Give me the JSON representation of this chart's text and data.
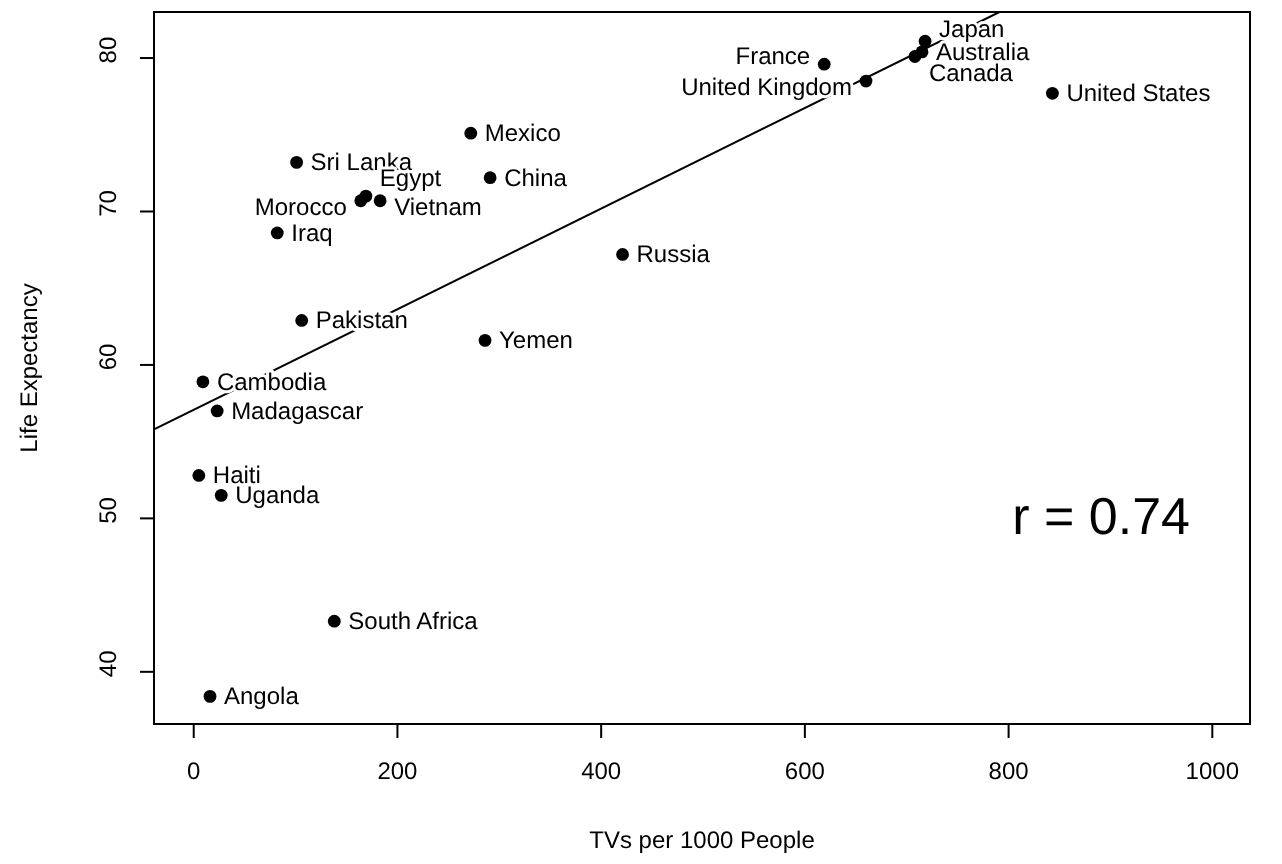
{
  "chart_data": {
    "type": "scatter",
    "xlabel": "TVs per 1000 People",
    "ylabel": "Life Expectancy",
    "xlim": [
      -39,
      1037
    ],
    "ylim": [
      36.6,
      83
    ],
    "xticks": [
      0,
      200,
      400,
      600,
      800,
      1000
    ],
    "yticks": [
      40,
      50,
      60,
      70,
      80
    ],
    "grid": false,
    "legend": false,
    "marker": "circle",
    "annotations": [
      "r =  0.74"
    ],
    "series": [
      {
        "name": "Japan",
        "color": "#000000",
        "x": [
          718
        ],
        "values": [
          81.1
        ]
      },
      {
        "name": "Australia",
        "color": "#000000",
        "x": [
          715
        ],
        "values": [
          80.4
        ]
      },
      {
        "name": "Canada",
        "color": "#000000",
        "x": [
          708
        ],
        "values": [
          80.1
        ]
      },
      {
        "name": "France",
        "color": "#000000",
        "x": [
          619
        ],
        "values": [
          79.6
        ]
      },
      {
        "name": "United Kingdom",
        "color": "#000000",
        "x": [
          660
        ],
        "values": [
          78.5
        ]
      },
      {
        "name": "United States",
        "color": "#000000",
        "x": [
          843
        ],
        "values": [
          77.7
        ]
      },
      {
        "name": "Mexico",
        "color": "#000000",
        "x": [
          272
        ],
        "values": [
          75.1
        ]
      },
      {
        "name": "Sri Lanka",
        "color": "#000000",
        "x": [
          101
        ],
        "values": [
          73.2
        ]
      },
      {
        "name": "China",
        "color": "#000000",
        "x": [
          291
        ],
        "values": [
          72.2
        ]
      },
      {
        "name": "Egypt",
        "color": "#000000",
        "x": [
          169
        ],
        "values": [
          71.0
        ]
      },
      {
        "name": "Morocco",
        "color": "#000000",
        "x": [
          164
        ],
        "values": [
          70.7
        ]
      },
      {
        "name": "Vietnam",
        "color": "#000000",
        "x": [
          183
        ],
        "values": [
          70.7
        ]
      },
      {
        "name": "Iraq",
        "color": "#000000",
        "x": [
          82
        ],
        "values": [
          68.6
        ]
      },
      {
        "name": "Russia",
        "color": "#000000",
        "x": [
          421
        ],
        "values": [
          67.2
        ]
      },
      {
        "name": "Pakistan",
        "color": "#000000",
        "x": [
          106
        ],
        "values": [
          62.9
        ]
      },
      {
        "name": "Yemen",
        "color": "#000000",
        "x": [
          286
        ],
        "values": [
          61.6
        ]
      },
      {
        "name": "Cambodia",
        "color": "#000000",
        "x": [
          9
        ],
        "values": [
          58.9
        ]
      },
      {
        "name": "Madagascar",
        "color": "#000000",
        "x": [
          23
        ],
        "values": [
          57.0
        ]
      },
      {
        "name": "Haiti",
        "color": "#000000",
        "x": [
          5
        ],
        "values": [
          52.8
        ]
      },
      {
        "name": "Uganda",
        "color": "#000000",
        "x": [
          27
        ],
        "values": [
          51.5
        ]
      },
      {
        "name": "South Africa",
        "color": "#000000",
        "x": [
          138
        ],
        "values": [
          43.3
        ]
      },
      {
        "name": "Angola",
        "color": "#000000",
        "x": [
          16
        ],
        "values": [
          38.4
        ]
      },
      {
        "type": "line",
        "marker": "none",
        "color": "#000000",
        "x": [
          -39,
          791
        ],
        "values": [
          55.8,
          83.0
        ]
      }
    ]
  }
}
